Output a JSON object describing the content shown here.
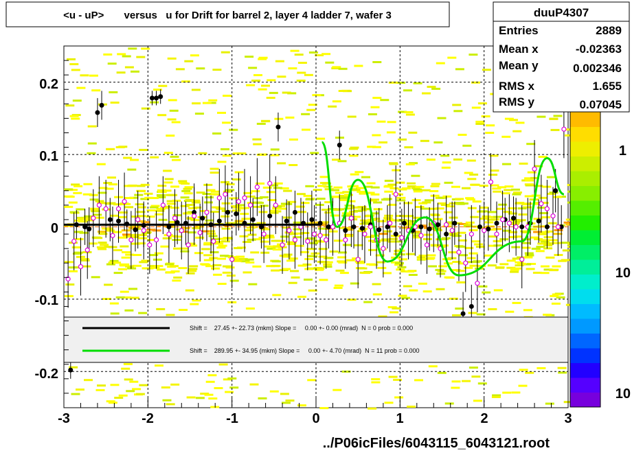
{
  "chart_data": {
    "type": "scatter",
    "title": "<u - uP>       versus   u for Drift for barrel 2, layer 4 ladder 7, wafer 3",
    "xlabel": "../P06icFiles/6043115_6043121.root",
    "ylabel": "",
    "xlim": [
      -3,
      3
    ],
    "ylim": [
      -0.25,
      0.25
    ],
    "grid": true,
    "x_ticks": [
      "-3",
      "-2",
      "-1",
      "0",
      "1",
      "2",
      "3"
    ],
    "y_ticks": [
      "0.2",
      "0.1",
      "0",
      "-0.1",
      "-0.2"
    ],
    "palette_labels": [
      "1",
      "10",
      "10"
    ],
    "stats": {
      "name": "duuP4307",
      "rows": [
        {
          "label": "Entries",
          "value": "2889"
        },
        {
          "label": "Mean x",
          "value": "-0.02363"
        },
        {
          "label": "Mean y",
          "value": "0.002346"
        },
        {
          "label": "RMS x",
          "value": "1.655"
        },
        {
          "label": "RMS y",
          "value": "0.07045"
        }
      ]
    },
    "legend": [
      {
        "text": "Shift =    27.45 +- 22.73 (mkm) Slope =     0.00 +- 0.00 (mrad)  N = 0 prob = 0.000",
        "color": "#000000"
      },
      {
        "text": "Shift =    289.95 +- 34.95 (mkm) Slope =     0.00 +- 4.70 (mrad)  N = 11 prob = 0.000",
        "color": "#00dd00"
      }
    ],
    "series": [
      {
        "marker": "filled-circle",
        "color": "#000000",
        "points": [
          [
            -2.92,
            -0.198,
            0.012
          ],
          [
            -2.85,
            0.003,
            0.02
          ],
          [
            -2.75,
            0.0,
            0.025
          ],
          [
            -2.7,
            -0.003,
            0.03
          ],
          [
            -2.6,
            0.158,
            0.02
          ],
          [
            -2.55,
            0.168,
            0.02
          ],
          [
            -2.45,
            0.01,
            0.03
          ],
          [
            -2.35,
            0.008,
            0.03
          ],
          [
            -2.25,
            0.004,
            0.02
          ],
          [
            -2.15,
            -0.004,
            0.03
          ],
          [
            -2.05,
            0.002,
            0.03
          ],
          [
            -1.95,
            0.178,
            0.01
          ],
          [
            -1.9,
            0.178,
            0.01
          ],
          [
            -1.85,
            0.18,
            0.01
          ],
          [
            -1.75,
            0.0,
            0.03
          ],
          [
            -1.65,
            0.006,
            0.03
          ],
          [
            -1.55,
            0.005,
            0.03
          ],
          [
            -1.45,
            0.02,
            0.04
          ],
          [
            -1.35,
            0.012,
            0.03
          ],
          [
            -1.25,
            0.003,
            0.04
          ],
          [
            -1.15,
            0.008,
            0.03
          ],
          [
            -1.05,
            0.02,
            0.04
          ],
          [
            -0.95,
            0.018,
            0.03
          ],
          [
            -0.85,
            0.005,
            0.04
          ],
          [
            -0.75,
            0.01,
            0.03
          ],
          [
            -0.65,
            0.0,
            0.03
          ],
          [
            -0.55,
            0.015,
            0.04
          ],
          [
            -0.45,
            0.138,
            0.02
          ],
          [
            -0.35,
            0.008,
            0.03
          ],
          [
            -0.25,
            0.02,
            0.03
          ],
          [
            -0.15,
            0.005,
            0.03
          ],
          [
            -0.05,
            0.01,
            0.04
          ],
          [
            0.05,
            0.005,
            0.03
          ],
          [
            0.15,
            0.0,
            0.03
          ],
          [
            0.28,
            0.113,
            0.02
          ],
          [
            0.35,
            -0.005,
            0.03
          ],
          [
            0.45,
            0.0,
            0.03
          ],
          [
            0.55,
            -0.002,
            0.03
          ],
          [
            0.65,
            0.003,
            0.03
          ],
          [
            0.75,
            -0.004,
            0.03
          ],
          [
            0.85,
            0.0,
            0.03
          ],
          [
            0.95,
            -0.01,
            0.03
          ],
          [
            1.05,
            0.005,
            0.03
          ],
          [
            1.15,
            -0.005,
            0.03
          ],
          [
            1.25,
            0.0,
            0.03
          ],
          [
            1.35,
            -0.003,
            0.03
          ],
          [
            1.45,
            0.003,
            0.03
          ],
          [
            1.55,
            -0.01,
            0.03
          ],
          [
            1.65,
            0.005,
            0.03
          ],
          [
            1.75,
            -0.12,
            0.03
          ],
          [
            1.85,
            -0.11,
            0.03
          ],
          [
            1.95,
            0.0,
            0.03
          ],
          [
            2.05,
            -0.003,
            0.03
          ],
          [
            2.15,
            0.005,
            0.03
          ],
          [
            2.25,
            0.01,
            0.03
          ],
          [
            2.35,
            0.012,
            0.03
          ],
          [
            2.45,
            0.0,
            0.03
          ],
          [
            2.55,
            0.005,
            0.03
          ],
          [
            2.65,
            0.008,
            0.03
          ],
          [
            2.75,
            0.0,
            0.03
          ],
          [
            2.85,
            0.05,
            0.03
          ],
          [
            2.92,
            0.0,
            0.03
          ]
        ]
      },
      {
        "marker": "open-diamond",
        "color": "#dd00dd",
        "points": [
          [
            -2.95,
            -0.072,
            0.04
          ],
          [
            -2.88,
            -0.02,
            0.04
          ],
          [
            -2.8,
            -0.055,
            0.04
          ],
          [
            -2.72,
            -0.032,
            0.04
          ],
          [
            -2.65,
            0.012,
            0.04
          ],
          [
            -2.58,
            0.03,
            0.04
          ],
          [
            -2.5,
            0.025,
            0.04
          ],
          [
            -2.42,
            -0.012,
            0.04
          ],
          [
            -2.35,
            0.025,
            0.04
          ],
          [
            -2.28,
            0.035,
            0.04
          ],
          [
            -2.2,
            -0.018,
            0.04
          ],
          [
            -2.12,
            0.01,
            0.04
          ],
          [
            -2.05,
            -0.005,
            0.04
          ],
          [
            -1.98,
            -0.025,
            0.04
          ],
          [
            -1.9,
            -0.018,
            0.04
          ],
          [
            -1.82,
            0.03,
            0.04
          ],
          [
            -1.75,
            -0.01,
            0.04
          ],
          [
            -1.68,
            0.012,
            0.04
          ],
          [
            -1.6,
            -0.005,
            0.04
          ],
          [
            -1.52,
            -0.025,
            0.04
          ],
          [
            -1.45,
            0.015,
            0.04
          ],
          [
            -1.38,
            -0.008,
            0.04
          ],
          [
            -1.3,
            0.02,
            0.04
          ],
          [
            -1.22,
            -0.02,
            0.04
          ],
          [
            -1.15,
            0.04,
            0.04
          ],
          [
            -1.08,
            0.045,
            0.04
          ],
          [
            -1.0,
            -0.045,
            0.04
          ],
          [
            -0.92,
            0.035,
            0.04
          ],
          [
            -0.85,
            0.04,
            0.04
          ],
          [
            -0.78,
            0.03,
            0.04
          ],
          [
            -0.7,
            0.055,
            0.04
          ],
          [
            -0.62,
            -0.01,
            0.04
          ],
          [
            -0.55,
            0.06,
            0.04
          ],
          [
            -0.48,
            0.03,
            0.04
          ],
          [
            -0.4,
            -0.025,
            0.04
          ],
          [
            -0.32,
            -0.005,
            0.04
          ],
          [
            -0.25,
            -0.018,
            0.04
          ],
          [
            -0.18,
            0.0,
            0.04
          ],
          [
            -0.1,
            -0.02,
            0.04
          ],
          [
            -0.02,
            -0.01,
            0.04
          ],
          [
            0.05,
            -0.012,
            0.04
          ],
          [
            0.12,
            -0.018,
            0.04
          ],
          [
            0.2,
            0.0,
            0.04
          ],
          [
            0.28,
            0.005,
            0.04
          ],
          [
            0.35,
            -0.018,
            0.04
          ],
          [
            0.42,
            0.012,
            0.04
          ],
          [
            0.5,
            -0.045,
            0.04
          ],
          [
            0.58,
            -0.01,
            0.04
          ],
          [
            0.65,
            0.0,
            0.04
          ],
          [
            0.72,
            -0.018,
            0.04
          ],
          [
            0.8,
            -0.03,
            0.04
          ],
          [
            0.88,
            0.005,
            0.04
          ],
          [
            0.95,
            0.045,
            0.04
          ],
          [
            1.02,
            -0.015,
            0.04
          ],
          [
            1.1,
            -0.005,
            0.04
          ],
          [
            1.18,
            0.0,
            0.04
          ],
          [
            1.25,
            -0.012,
            0.04
          ],
          [
            1.32,
            -0.025,
            0.04
          ],
          [
            1.4,
            0.005,
            0.04
          ],
          [
            1.48,
            -0.03,
            0.04
          ],
          [
            1.55,
            0.003,
            0.04
          ],
          [
            1.62,
            -0.005,
            0.04
          ],
          [
            1.7,
            -0.035,
            0.04
          ],
          [
            1.78,
            -0.05,
            0.04
          ],
          [
            1.85,
            -0.01,
            0.04
          ],
          [
            1.92,
            -0.078,
            0.04
          ],
          [
            2.0,
            -0.005,
            0.04
          ],
          [
            2.08,
            0.062,
            0.04
          ],
          [
            2.15,
            -0.01,
            0.04
          ],
          [
            2.22,
            0.01,
            0.04
          ],
          [
            2.3,
            0.005,
            0.04
          ],
          [
            2.38,
            0.0,
            0.04
          ],
          [
            2.45,
            -0.045,
            0.04
          ],
          [
            2.52,
            0.0,
            0.04
          ],
          [
            2.6,
            0.08,
            0.04
          ],
          [
            2.68,
            0.032,
            0.04
          ],
          [
            2.75,
            0.025,
            0.04
          ],
          [
            2.82,
            0.015,
            0.04
          ],
          [
            2.88,
            0.0,
            0.04
          ],
          [
            2.95,
            0.135,
            0.04
          ]
        ]
      }
    ],
    "fit_lines": [
      {
        "color": "#000000",
        "x": [
          -3,
          0.05
        ],
        "y": [
          0.003,
          0.003
        ]
      },
      {
        "color": "#00dd00",
        "x_range": [
          0.05,
          2.95
        ],
        "form": "damped-oscillation",
        "peaks": [
          [
            0.07,
            0.117
          ],
          [
            0.5,
            0.065
          ],
          [
            1.3,
            0.013
          ],
          [
            2.75,
            0.095
          ]
        ],
        "troughs": [
          [
            0.25,
            0.0
          ],
          [
            0.85,
            -0.048
          ],
          [
            1.7,
            -0.067
          ],
          [
            2.45,
            -0.02
          ]
        ]
      }
    ]
  }
}
